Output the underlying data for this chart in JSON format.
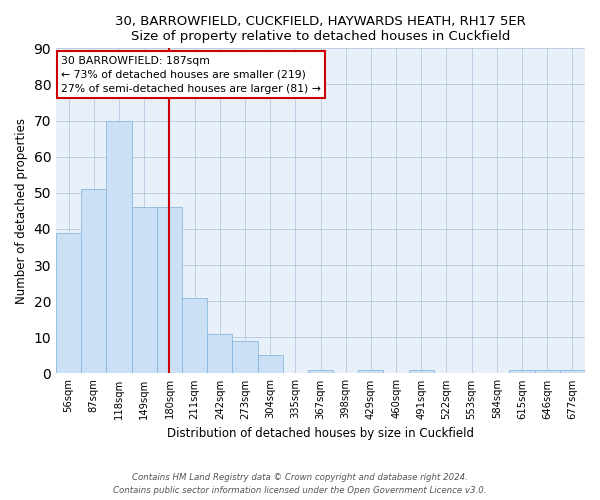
{
  "title1": "30, BARROWFIELD, CUCKFIELD, HAYWARDS HEATH, RH17 5ER",
  "title2": "Size of property relative to detached houses in Cuckfield",
  "xlabel": "Distribution of detached houses by size in Cuckfield",
  "ylabel": "Number of detached properties",
  "bar_labels": [
    "56sqm",
    "87sqm",
    "118sqm",
    "149sqm",
    "180sqm",
    "211sqm",
    "242sqm",
    "273sqm",
    "304sqm",
    "335sqm",
    "367sqm",
    "398sqm",
    "429sqm",
    "460sqm",
    "491sqm",
    "522sqm",
    "553sqm",
    "584sqm",
    "615sqm",
    "646sqm",
    "677sqm"
  ],
  "bar_values": [
    39,
    51,
    70,
    46,
    46,
    21,
    11,
    9,
    5,
    0,
    1,
    0,
    1,
    0,
    1,
    0,
    0,
    0,
    1,
    1,
    1
  ],
  "bar_color": "#cce0f5",
  "bar_edge_color": "#8ab8de",
  "vline_x_index": 4,
  "vline_color": "#cc0000",
  "ylim": [
    0,
    90
  ],
  "yticks": [
    0,
    10,
    20,
    30,
    40,
    50,
    60,
    70,
    80,
    90
  ],
  "annotation_line1": "30 BARROWFIELD: 187sqm",
  "annotation_line2": "← 73% of detached houses are smaller (219)",
  "annotation_line3": "27% of semi-detached houses are larger (81) →",
  "annotation_box_facecolor": "#ffffff",
  "annotation_box_edgecolor": "#cc0000",
  "footer1": "Contains HM Land Registry data © Crown copyright and database right 2024.",
  "footer2": "Contains public sector information licensed under the Open Government Licence v3.0.",
  "axes_facecolor": "#e8f0fa",
  "fig_facecolor": "#ffffff"
}
